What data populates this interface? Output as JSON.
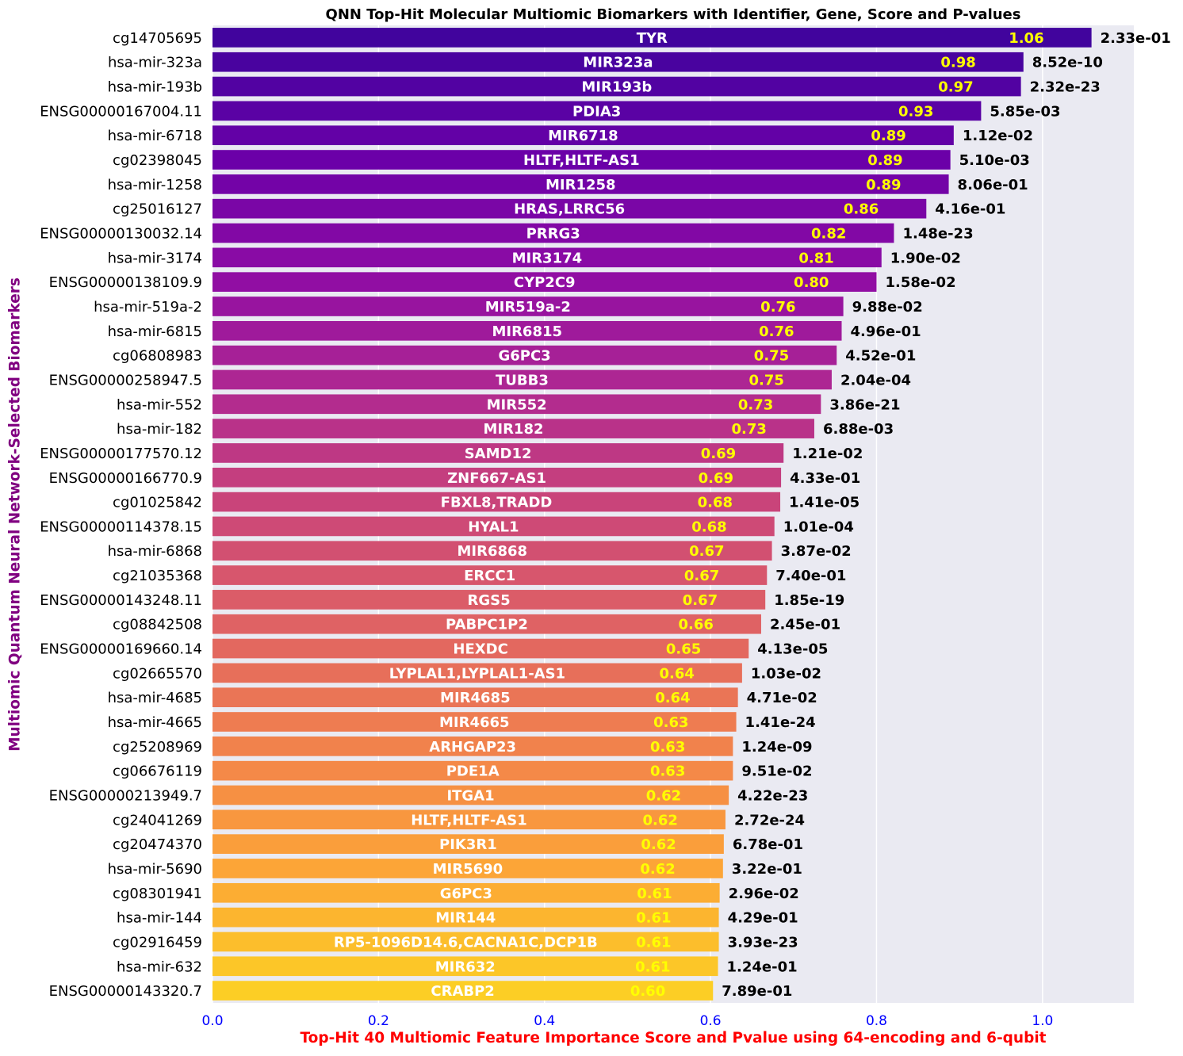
{
  "chart_data": {
    "type": "bar",
    "orientation": "horizontal",
    "title": "QNN Top-Hit Molecular Multiomic Biomarkers with Identifier, Gene, Score and P-values",
    "xlabel": "Top-Hit 40 Multiomic Feature Importance Score and Pvalue using 64-encoding and 6-qubit",
    "ylabel": "Multiomic Quantum Neural Network-Selected Biomarkers",
    "xlim": [
      0,
      1.11
    ],
    "xticks": [
      0.0,
      0.2,
      0.4,
      0.6,
      0.8,
      1.0
    ],
    "xtick_labels": [
      "0.0",
      "0.2",
      "0.4",
      "0.6",
      "0.8",
      "1.0"
    ],
    "grid": true,
    "palette": "plasma",
    "colors": {
      "background": "#eaeaf2",
      "gridline": "#ffffff",
      "score_label": "#ffff00",
      "gene_label": "#ffffff",
      "pvalue_label": "#000000",
      "tick_label_x": "#0000ff",
      "xlabel": "#ff0000",
      "ylabel": "#800080"
    },
    "categories": [
      "cg14705695",
      "hsa-mir-323a",
      "hsa-mir-193b",
      "ENSG00000167004.11",
      "hsa-mir-6718",
      "cg02398045",
      "hsa-mir-1258",
      "cg25016127",
      "ENSG00000130032.14",
      "hsa-mir-3174",
      "ENSG00000138109.9",
      "hsa-mir-519a-2",
      "hsa-mir-6815",
      "cg06808983",
      "ENSG00000258947.5",
      "hsa-mir-552",
      "hsa-mir-182",
      "ENSG00000177570.12",
      "ENSG00000166770.9",
      "cg01025842",
      "ENSG00000114378.15",
      "hsa-mir-6868",
      "cg21035368",
      "ENSG00000143248.11",
      "cg08842508",
      "ENSG00000169660.14",
      "cg02665570",
      "hsa-mir-4685",
      "hsa-mir-4665",
      "cg25208969",
      "cg06676119",
      "ENSG00000213949.7",
      "cg24041269",
      "cg20474370",
      "hsa-mir-5690",
      "cg08301941",
      "hsa-mir-144",
      "cg02916459",
      "hsa-mir-632",
      "ENSG00000143320.7"
    ],
    "values": [
      1.06,
      0.98,
      0.97,
      0.93,
      0.89,
      0.89,
      0.89,
      0.86,
      0.82,
      0.81,
      0.8,
      0.76,
      0.76,
      0.75,
      0.75,
      0.73,
      0.73,
      0.69,
      0.69,
      0.68,
      0.68,
      0.67,
      0.67,
      0.67,
      0.66,
      0.65,
      0.64,
      0.64,
      0.63,
      0.63,
      0.63,
      0.62,
      0.62,
      0.62,
      0.62,
      0.61,
      0.61,
      0.61,
      0.61,
      0.6
    ],
    "raw_values": [
      1.059,
      0.977,
      0.974,
      0.926,
      0.893,
      0.889,
      0.887,
      0.86,
      0.821,
      0.806,
      0.8,
      0.76,
      0.758,
      0.752,
      0.746,
      0.733,
      0.725,
      0.688,
      0.685,
      0.684,
      0.677,
      0.674,
      0.668,
      0.666,
      0.661,
      0.646,
      0.638,
      0.633,
      0.631,
      0.627,
      0.627,
      0.622,
      0.618,
      0.616,
      0.615,
      0.611,
      0.61,
      0.61,
      0.609,
      0.603
    ],
    "score_labels": [
      "1.06",
      "0.98",
      "0.97",
      "0.93",
      "0.89",
      "0.89",
      "0.89",
      "0.86",
      "0.82",
      "0.81",
      "0.80",
      "0.76",
      "0.76",
      "0.75",
      "0.75",
      "0.73",
      "0.73",
      "0.69",
      "0.69",
      "0.68",
      "0.68",
      "0.67",
      "0.67",
      "0.67",
      "0.66",
      "0.65",
      "0.64",
      "0.64",
      "0.63",
      "0.63",
      "0.63",
      "0.62",
      "0.62",
      "0.62",
      "0.62",
      "0.61",
      "0.61",
      "0.61",
      "0.61",
      "0.60"
    ],
    "genes": [
      "TYR",
      "MIR323a",
      "MIR193b",
      "PDIA3",
      "MIR6718",
      "HLTF,HLTF-AS1",
      "MIR1258",
      "HRAS,LRRC56",
      "PRRG3",
      "MIR3174",
      "CYP2C9",
      "MIR519a-2",
      "MIR6815",
      "G6PC3",
      "TUBB3",
      "MIR552",
      "MIR182",
      "SAMD12",
      "ZNF667-AS1",
      "FBXL8,TRADD",
      "HYAL1",
      "MIR6868",
      "ERCC1",
      "RGS5",
      "PABPC1P2",
      "HEXDC",
      "LYPLAL1,LYPLAL1-AS1",
      "MIR4685",
      "MIR4665",
      "ARHGAP23",
      "PDE1A",
      "ITGA1",
      "HLTF,HLTF-AS1",
      "PIK3R1",
      "MIR5690",
      "G6PC3",
      "MIR144",
      "RP5-1096D14.6,CACNA1C,DCP1B",
      "MIR632",
      "CRABP2"
    ],
    "pvalues": [
      "2.33e-01",
      "8.52e-10",
      "2.32e-23",
      "5.85e-03",
      "1.12e-02",
      "5.10e-03",
      "8.06e-01",
      "4.16e-01",
      "1.48e-23",
      "1.90e-02",
      "1.58e-02",
      "9.88e-02",
      "4.96e-01",
      "4.52e-01",
      "2.04e-04",
      "3.86e-21",
      "6.88e-03",
      "1.21e-02",
      "4.33e-01",
      "1.41e-05",
      "1.01e-04",
      "3.87e-02",
      "7.40e-01",
      "1.85e-19",
      "2.45e-01",
      "4.13e-05",
      "1.03e-02",
      "4.71e-02",
      "1.41e-24",
      "1.24e-09",
      "9.51e-02",
      "4.22e-23",
      "2.72e-24",
      "6.78e-01",
      "3.22e-01",
      "2.96e-02",
      "4.29e-01",
      "3.93e-23",
      "1.24e-01",
      "7.89e-01"
    ]
  }
}
